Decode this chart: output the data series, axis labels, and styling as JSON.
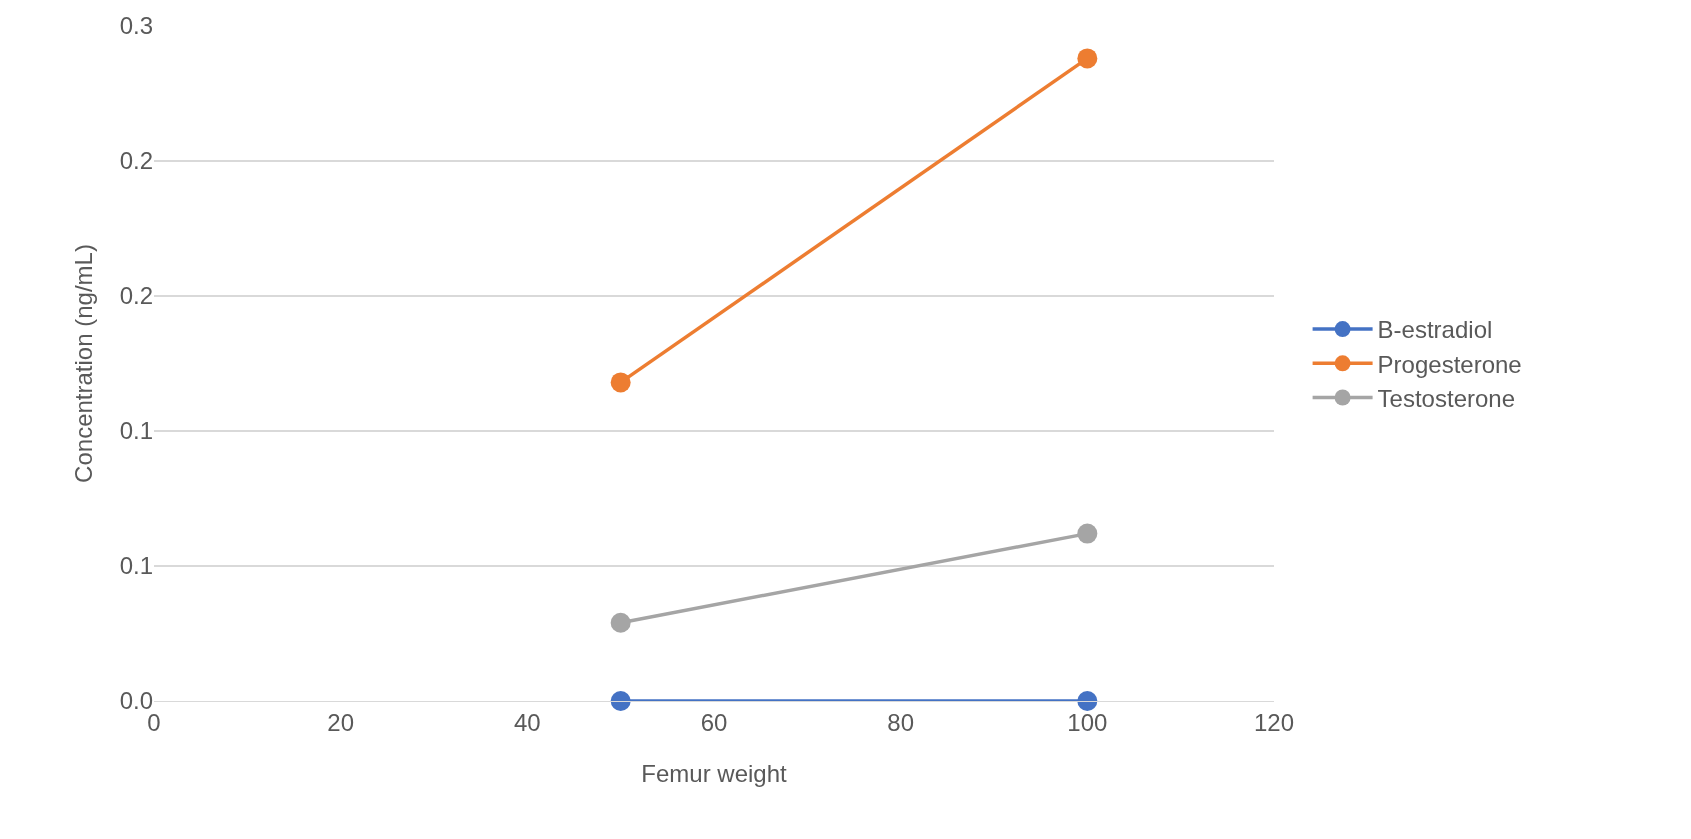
{
  "chart_data": {
    "type": "line",
    "xlabel": "Femur weight",
    "ylabel": "Concentration (ng/mL)",
    "xlim": [
      0,
      120
    ],
    "xticks": [
      0,
      20,
      40,
      60,
      80,
      100,
      120
    ],
    "ylim": [
      0,
      0.25
    ],
    "yticks": [
      {
        "value": 0,
        "label": "0.0"
      },
      {
        "value": 0.05,
        "label": "0.1"
      },
      {
        "value": 0.1,
        "label": "0.1"
      },
      {
        "value": 0.15,
        "label": "0.2"
      },
      {
        "value": 0.2,
        "label": "0.2"
      },
      {
        "value": 0.25,
        "label": "0.3"
      }
    ],
    "x": [
      50,
      100
    ],
    "series": [
      {
        "name": "B-estradiol",
        "color": "#4472c4",
        "values": [
          0,
          0
        ]
      },
      {
        "name": "Progesterone",
        "color": "#ed7d31",
        "values": [
          0.118,
          0.238
        ]
      },
      {
        "name": "Testosterone",
        "color": "#a5a5a5",
        "values": [
          0.029,
          0.062
        ]
      }
    ],
    "grid": "y",
    "legend": "right",
    "marker": "circle",
    "line_style": "solid"
  }
}
